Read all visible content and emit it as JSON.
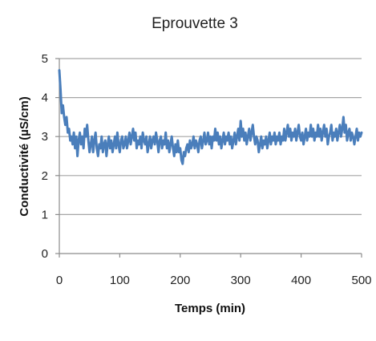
{
  "chart_data": {
    "type": "line",
    "title": "Eprouvette 3",
    "xlabel": "Temps (min)",
    "ylabel": "Conductivité (µS/cm)",
    "xlim": [
      0,
      500
    ],
    "ylim": [
      0,
      5
    ],
    "x_ticks": [
      "0",
      "100",
      "200",
      "300",
      "400",
      "500"
    ],
    "y_ticks": [
      "0",
      "1",
      "2",
      "3",
      "4",
      "5"
    ],
    "grid": "horizontal",
    "legend": "none",
    "series": [
      {
        "color": "#4a7ebb",
        "points": [
          [
            0,
            4.7
          ],
          [
            2,
            4.2
          ],
          [
            4,
            3.6
          ],
          [
            6,
            3.8
          ],
          [
            8,
            3.5
          ],
          [
            10,
            3.3
          ],
          [
            12,
            3.5
          ],
          [
            14,
            3.1
          ],
          [
            16,
            3.2
          ],
          [
            18,
            2.9
          ],
          [
            20,
            3.0
          ],
          [
            22,
            2.8
          ],
          [
            24,
            3.1
          ],
          [
            26,
            2.7
          ],
          [
            28,
            3.0
          ],
          [
            30,
            2.5
          ],
          [
            32,
            2.9
          ],
          [
            34,
            3.1
          ],
          [
            36,
            2.8
          ],
          [
            38,
            3.0
          ],
          [
            40,
            2.7
          ],
          [
            42,
            3.2
          ],
          [
            44,
            3.0
          ],
          [
            46,
            3.3
          ],
          [
            48,
            2.9
          ],
          [
            50,
            2.6
          ],
          [
            52,
            2.8
          ],
          [
            54,
            3.0
          ],
          [
            56,
            2.6
          ],
          [
            58,
            2.9
          ],
          [
            60,
            3.1
          ],
          [
            62,
            2.7
          ],
          [
            64,
            2.5
          ],
          [
            66,
            2.8
          ],
          [
            68,
            2.7
          ],
          [
            70,
            3.0
          ],
          [
            72,
            2.6
          ],
          [
            74,
            2.8
          ],
          [
            76,
            2.9
          ],
          [
            78,
            2.5
          ],
          [
            80,
            2.8
          ],
          [
            82,
            3.0
          ],
          [
            84,
            2.7
          ],
          [
            86,
            2.9
          ],
          [
            88,
            2.6
          ],
          [
            90,
            2.8
          ],
          [
            92,
            3.0
          ],
          [
            94,
            2.7
          ],
          [
            96,
            3.1
          ],
          [
            98,
            2.8
          ],
          [
            100,
            2.6
          ],
          [
            102,
            2.9
          ],
          [
            104,
            3.0
          ],
          [
            106,
            2.7
          ],
          [
            108,
            2.8
          ],
          [
            110,
            3.0
          ],
          [
            112,
            2.7
          ],
          [
            114,
            2.9
          ],
          [
            116,
            3.1
          ],
          [
            118,
            2.8
          ],
          [
            120,
            3.0
          ],
          [
            122,
            3.2
          ],
          [
            124,
            2.9
          ],
          [
            126,
            3.1
          ],
          [
            128,
            2.7
          ],
          [
            130,
            2.9
          ],
          [
            132,
            2.8
          ],
          [
            134,
            3.0
          ],
          [
            136,
            2.7
          ],
          [
            138,
            3.1
          ],
          [
            140,
            2.9
          ],
          [
            142,
            2.8
          ],
          [
            144,
            3.0
          ],
          [
            146,
            2.6
          ],
          [
            148,
            2.8
          ],
          [
            150,
            3.0
          ],
          [
            152,
            2.7
          ],
          [
            154,
            2.9
          ],
          [
            156,
            3.0
          ],
          [
            158,
            2.8
          ],
          [
            160,
            3.1
          ],
          [
            162,
            2.9
          ],
          [
            164,
            2.6
          ],
          [
            166,
            2.9
          ],
          [
            168,
            3.0
          ],
          [
            170,
            2.7
          ],
          [
            172,
            2.9
          ],
          [
            174,
            2.8
          ],
          [
            176,
            3.1
          ],
          [
            178,
            2.7
          ],
          [
            180,
            2.9
          ],
          [
            182,
            2.6
          ],
          [
            184,
            2.8
          ],
          [
            186,
            3.0
          ],
          [
            188,
            2.7
          ],
          [
            190,
            2.5
          ],
          [
            192,
            2.8
          ],
          [
            194,
            2.6
          ],
          [
            196,
            2.9
          ],
          [
            198,
            2.6
          ],
          [
            200,
            2.7
          ],
          [
            202,
            2.4
          ],
          [
            204,
            2.3
          ],
          [
            206,
            2.6
          ],
          [
            208,
            2.5
          ],
          [
            210,
            2.7
          ],
          [
            212,
            2.8
          ],
          [
            214,
            2.6
          ],
          [
            216,
            2.9
          ],
          [
            218,
            2.7
          ],
          [
            220,
            2.8
          ],
          [
            222,
            3.0
          ],
          [
            224,
            2.7
          ],
          [
            226,
            2.9
          ],
          [
            228,
            2.8
          ],
          [
            230,
            2.6
          ],
          [
            232,
            2.9
          ],
          [
            234,
            3.0
          ],
          [
            236,
            2.7
          ],
          [
            238,
            2.9
          ],
          [
            240,
            3.1
          ],
          [
            242,
            2.8
          ],
          [
            244,
            2.9
          ],
          [
            246,
            3.1
          ],
          [
            248,
            2.8
          ],
          [
            250,
            3.0
          ],
          [
            252,
            2.7
          ],
          [
            254,
            3.0
          ],
          [
            256,
            2.9
          ],
          [
            258,
            3.2
          ],
          [
            260,
            2.9
          ],
          [
            262,
            3.1
          ],
          [
            264,
            2.8
          ],
          [
            266,
            3.0
          ],
          [
            268,
            2.7
          ],
          [
            270,
            2.9
          ],
          [
            272,
            3.1
          ],
          [
            274,
            2.8
          ],
          [
            276,
            3.0
          ],
          [
            278,
            2.9
          ],
          [
            280,
            3.1
          ],
          [
            282,
            2.8
          ],
          [
            284,
            3.0
          ],
          [
            286,
            2.7
          ],
          [
            288,
            2.9
          ],
          [
            290,
            3.1
          ],
          [
            292,
            2.8
          ],
          [
            294,
            3.0
          ],
          [
            296,
            3.2
          ],
          [
            298,
            2.9
          ],
          [
            300,
            3.4
          ],
          [
            302,
            3.0
          ],
          [
            304,
            3.2
          ],
          [
            306,
            2.9
          ],
          [
            308,
            3.1
          ],
          [
            310,
            2.8
          ],
          [
            312,
            3.0
          ],
          [
            314,
            3.2
          ],
          [
            316,
            2.9
          ],
          [
            318,
            3.1
          ],
          [
            320,
            3.3
          ],
          [
            322,
            3.0
          ],
          [
            324,
            2.8
          ],
          [
            326,
            3.0
          ],
          [
            328,
            2.9
          ],
          [
            330,
            2.6
          ],
          [
            332,
            2.8
          ],
          [
            334,
            3.0
          ],
          [
            336,
            2.7
          ],
          [
            338,
            2.9
          ],
          [
            340,
            2.8
          ],
          [
            342,
            3.0
          ],
          [
            344,
            2.7
          ],
          [
            346,
            2.9
          ],
          [
            348,
            3.1
          ],
          [
            350,
            2.8
          ],
          [
            352,
            3.0
          ],
          [
            354,
            2.9
          ],
          [
            356,
            3.1
          ],
          [
            358,
            2.8
          ],
          [
            360,
            3.0
          ],
          [
            362,
            2.9
          ],
          [
            364,
            3.1
          ],
          [
            366,
            2.8
          ],
          [
            368,
            3.0
          ],
          [
            370,
            2.9
          ],
          [
            372,
            3.2
          ],
          [
            374,
            2.9
          ],
          [
            376,
            3.1
          ],
          [
            378,
            3.3
          ],
          [
            380,
            3.0
          ],
          [
            382,
            3.2
          ],
          [
            384,
            2.9
          ],
          [
            386,
            3.1
          ],
          [
            388,
            3.0
          ],
          [
            390,
            3.2
          ],
          [
            392,
            2.9
          ],
          [
            394,
            3.1
          ],
          [
            396,
            3.3
          ],
          [
            398,
            3.0
          ],
          [
            400,
            2.9
          ],
          [
            402,
            3.1
          ],
          [
            404,
            2.8
          ],
          [
            406,
            3.0
          ],
          [
            408,
            3.2
          ],
          [
            410,
            2.9
          ],
          [
            412,
            3.1
          ],
          [
            414,
            3.0
          ],
          [
            416,
            3.3
          ],
          [
            418,
            3.0
          ],
          [
            420,
            3.2
          ],
          [
            422,
            2.9
          ],
          [
            424,
            3.1
          ],
          [
            426,
            3.0
          ],
          [
            428,
            3.3
          ],
          [
            430,
            3.0
          ],
          [
            432,
            3.2
          ],
          [
            434,
            2.9
          ],
          [
            436,
            3.1
          ],
          [
            438,
            3.3
          ],
          [
            440,
            3.0
          ],
          [
            442,
            3.2
          ],
          [
            444,
            2.8
          ],
          [
            446,
            3.0
          ],
          [
            448,
            3.1
          ],
          [
            450,
            3.3
          ],
          [
            452,
            2.9
          ],
          [
            454,
            3.1
          ],
          [
            456,
            3.0
          ],
          [
            458,
            3.2
          ],
          [
            460,
            2.9
          ],
          [
            462,
            3.1
          ],
          [
            464,
            3.3
          ],
          [
            466,
            3.0
          ],
          [
            468,
            3.2
          ],
          [
            470,
            3.5
          ],
          [
            472,
            3.1
          ],
          [
            474,
            3.3
          ],
          [
            476,
            2.9
          ],
          [
            478,
            3.1
          ],
          [
            480,
            3.2
          ],
          [
            482,
            2.9
          ],
          [
            484,
            3.1
          ],
          [
            486,
            3.0
          ],
          [
            488,
            2.8
          ],
          [
            490,
            3.0
          ],
          [
            492,
            3.2
          ],
          [
            494,
            2.9
          ],
          [
            496,
            3.1
          ],
          [
            498,
            3.0
          ],
          [
            500,
            3.1
          ]
        ]
      }
    ]
  }
}
